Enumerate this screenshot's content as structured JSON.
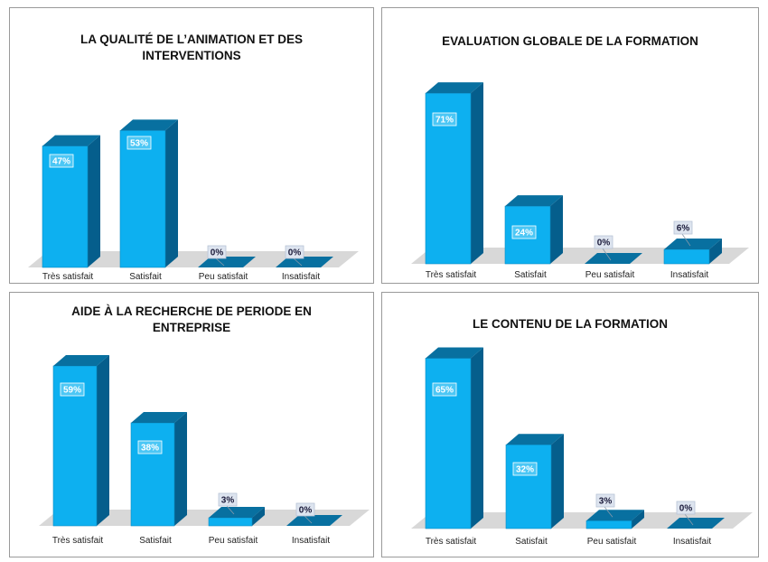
{
  "colors": {
    "front": "#0DB0F0",
    "top": "#0870A0",
    "side": "#055E8C",
    "floor": "#D8D8D8"
  },
  "chart_data": [
    {
      "type": "bar",
      "title": "LA QUALITÉ DE L’ANIMATION ET DES INTERVENTIONS",
      "categories": [
        "Très satisfait",
        "Satisfait",
        "Peu satisfait",
        "Insatisfait"
      ],
      "values": [
        47,
        53,
        0,
        0
      ],
      "value_labels": [
        "47%",
        "53%",
        "0%",
        "0%"
      ]
    },
    {
      "type": "bar",
      "title": "EVALUATION GLOBALE DE LA FORMATION",
      "categories": [
        "Très satisfait",
        "Satisfait",
        "Peu satisfait",
        "Insatisfait"
      ],
      "values": [
        71,
        24,
        0,
        6
      ],
      "value_labels": [
        "71%",
        "24%",
        "0%",
        "6%"
      ]
    },
    {
      "type": "bar",
      "title": "AIDE À LA RECHERCHE DE PERIODE EN ENTREPRISE",
      "categories": [
        "Très satisfait",
        "Satisfait",
        "Peu satisfait",
        "Insatisfait"
      ],
      "values": [
        59,
        38,
        3,
        0
      ],
      "value_labels": [
        "59%",
        "38%",
        "3%",
        "0%"
      ]
    },
    {
      "type": "bar",
      "title": "LE CONTENU DE LA FORMATION",
      "categories": [
        "Très satisfait",
        "Satisfait",
        "Peu satisfait",
        "Insatisfait"
      ],
      "values": [
        65,
        32,
        3,
        0
      ],
      "value_labels": [
        "65%",
        "32%",
        "3%",
        "0%"
      ]
    }
  ]
}
